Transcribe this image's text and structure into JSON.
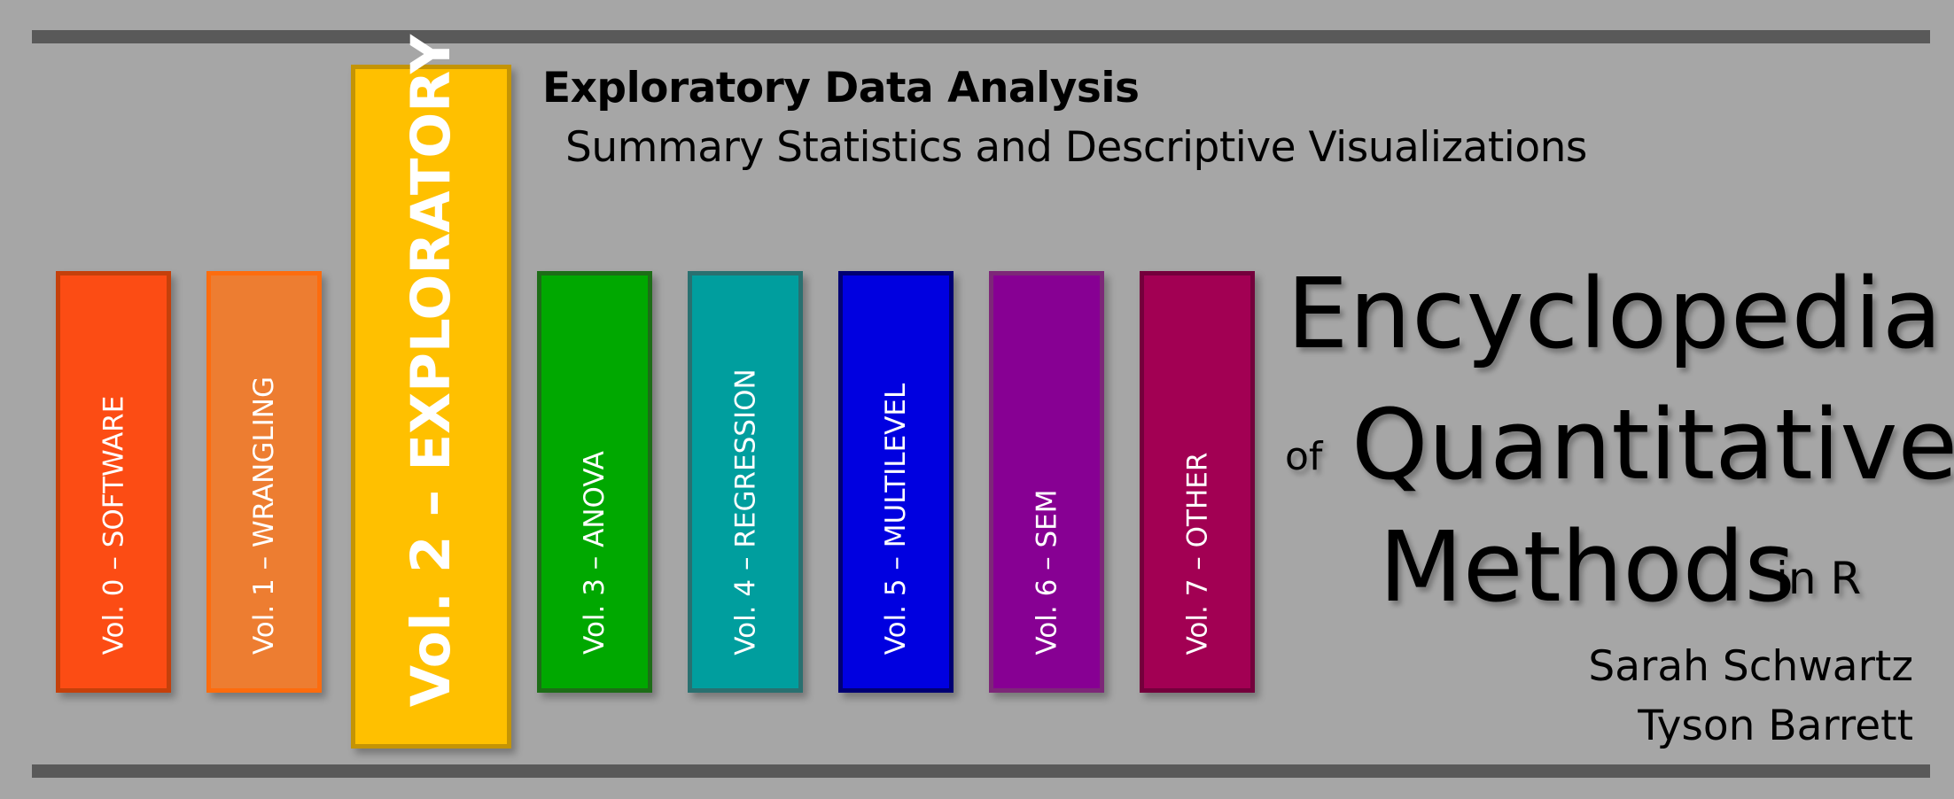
{
  "header": {
    "subtitle_bold": "Exploratory Data Analysis",
    "subtitle_regular": "Summary Statistics and Descriptive Visualizations"
  },
  "books": [
    {
      "label": "Vol. 0 – SOFTWARE",
      "color": "#fc4c14",
      "border": "#c5400b"
    },
    {
      "label": "Vol. 1 – WRANGLING",
      "color": "#ed7d31",
      "border": "#fd6c0e"
    },
    {
      "label": "Vol. 2 – EXPLORATORY",
      "color": "#ffc000",
      "border": "#c49405"
    },
    {
      "label": "Vol. 3 – ANOVA",
      "color": "#00a800",
      "border": "#1d6d17"
    },
    {
      "label": "Vol. 4 – REGRESSION",
      "color": "#009e9e",
      "border": "#297070"
    },
    {
      "label": "Vol. 5 – MULTILEVEL",
      "color": "#0000e0",
      "border": "#000073"
    },
    {
      "label": "Vol. 6 – SEM",
      "color": "#870093",
      "border": "#7d2778"
    },
    {
      "label": "Vol. 7 – OTHER",
      "color": "#a20053",
      "border": "#74003c"
    }
  ],
  "title": {
    "line1": "Encyclopedia",
    "line2_prefix": "of",
    "line2": "Quantitative",
    "line3": "Methods",
    "line3_suffix": "in R"
  },
  "authors": [
    "Sarah Schwartz",
    "Tyson Barrett"
  ]
}
